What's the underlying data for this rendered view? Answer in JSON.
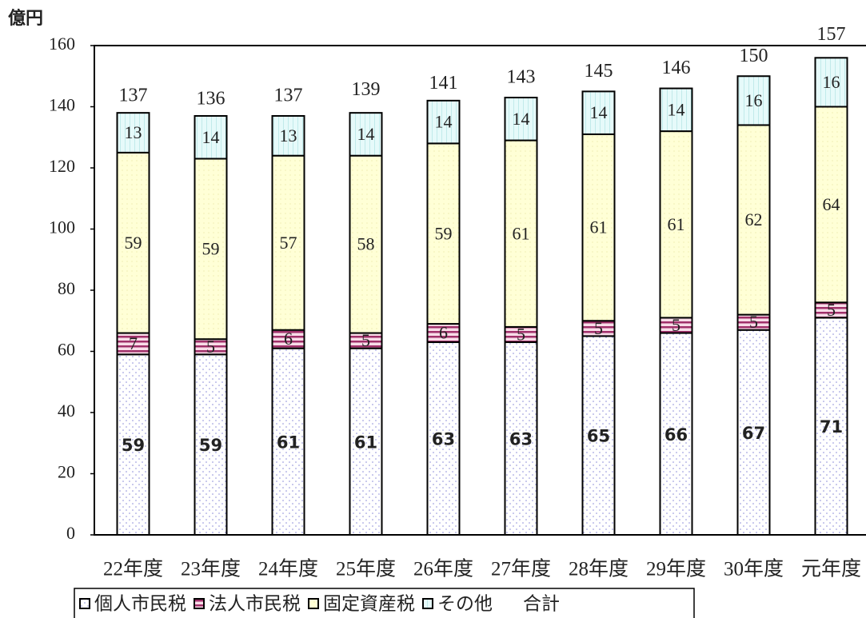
{
  "chart_data": {
    "type": "stacked_bar",
    "y_label": "億円",
    "categories": [
      "22年度",
      "23年度",
      "24年度",
      "25年度",
      "26年度",
      "27年度",
      "28年度",
      "29年度",
      "30年度",
      "元年度"
    ],
    "series": [
      {
        "name": "個人市民税",
        "color": "#ffffff",
        "values": [
          59,
          59,
          61,
          61,
          63,
          63,
          65,
          66,
          67,
          71
        ]
      },
      {
        "name": "法人市民税",
        "color": "#f4c6d8",
        "values": [
          7,
          5,
          6,
          5,
          6,
          5,
          5,
          5,
          5,
          5
        ]
      },
      {
        "name": "固定資産税",
        "color": "#ffffd6",
        "values": [
          59,
          59,
          57,
          58,
          59,
          61,
          61,
          61,
          62,
          64
        ]
      },
      {
        "name": "その他",
        "color": "#dff6f6",
        "values": [
          13,
          14,
          13,
          14,
          14,
          14,
          14,
          14,
          16,
          16
        ]
      }
    ],
    "totals": {
      "name": "合計",
      "values": [
        137,
        136,
        137,
        139,
        141,
        143,
        145,
        146,
        150,
        157
      ]
    },
    "ylim": [
      0,
      160
    ],
    "yticks": [
      0,
      20,
      40,
      60,
      80,
      100,
      120,
      140,
      160
    ],
    "grid": false
  }
}
